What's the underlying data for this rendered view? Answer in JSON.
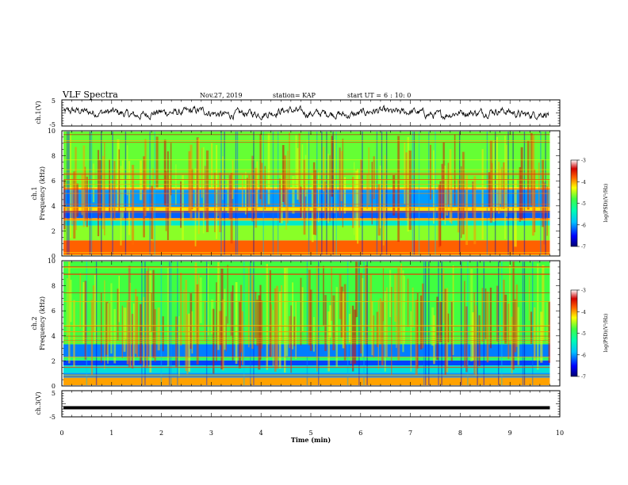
{
  "header": {
    "title": "VLF Spectra",
    "date": "Nov.27, 2019",
    "station": "station= KAP",
    "start_label": "start  UT =",
    "start_h": "6",
    "start_sep": ":",
    "start_ms": "10: 0"
  },
  "colors": {
    "waveform": "#000000",
    "axis": "#000000",
    "background": "#ffffff"
  },
  "chart_data": [
    {
      "type": "line",
      "name": "ch.1 waveform",
      "ylabel": "ch.1(V)",
      "ylim": [
        -5,
        5
      ],
      "yticks": [
        "5",
        "-5"
      ],
      "xlim": [
        0,
        10
      ],
      "description_values": "noisy waveform hovering around 0 V, amplitude ~±2 V"
    },
    {
      "type": "heatmap",
      "name": "ch.1 spectrogram",
      "ylabel": "ch.1\nFrequency (kHz)",
      "ylabel_line1": "ch.1",
      "ylabel_line2": "Frequency (kHz)",
      "ylim": [
        0,
        10
      ],
      "yticks": [
        "0",
        "2",
        "4",
        "6",
        "8",
        "10"
      ],
      "xlim": [
        0,
        10
      ],
      "colorbar": {
        "label": "log(PSD)(V²/Hz)",
        "range": [
          -7,
          -3
        ],
        "ticks": [
          "-3",
          "-4",
          "-5",
          "-6",
          "-7"
        ]
      },
      "bands_kHz": [
        {
          "from": 0.0,
          "to": 1.2,
          "level": -3.8
        },
        {
          "from": 1.2,
          "to": 2.4,
          "level": -4.6
        },
        {
          "from": 2.4,
          "to": 2.8,
          "level": -5.5
        },
        {
          "from": 2.8,
          "to": 3.0,
          "level": -4.0
        },
        {
          "from": 3.0,
          "to": 3.6,
          "level": -6.2
        },
        {
          "from": 3.6,
          "to": 3.9,
          "level": -4.2
        },
        {
          "from": 3.9,
          "to": 5.3,
          "level": -6.0
        },
        {
          "from": 5.3,
          "to": 5.5,
          "level": -4.2
        },
        {
          "from": 5.5,
          "to": 10.0,
          "level": -4.7
        }
      ]
    },
    {
      "type": "heatmap",
      "name": "ch.2 spectrogram",
      "ylabel": "ch.2\nFrequency (kHz)",
      "ylabel_line1": "ch.2",
      "ylabel_line2": "Frequency (kHz)",
      "ylim": [
        0,
        10
      ],
      "yticks": [
        "0",
        "2",
        "4",
        "6",
        "8",
        "10"
      ],
      "xlim": [
        0,
        10
      ],
      "colorbar": {
        "label": "log(PSD)(V²/Hz)",
        "range": [
          -7,
          -3
        ],
        "ticks": [
          "-3",
          "-4",
          "-5",
          "-6",
          "-7"
        ]
      },
      "bands_kHz": [
        {
          "from": 0.0,
          "to": 0.6,
          "level": -4.0
        },
        {
          "from": 0.6,
          "to": 1.0,
          "level": -6.0
        },
        {
          "from": 1.0,
          "to": 1.6,
          "level": -5.6
        },
        {
          "from": 1.6,
          "to": 2.0,
          "level": -6.3
        },
        {
          "from": 2.0,
          "to": 2.3,
          "level": -5.0
        },
        {
          "from": 2.3,
          "to": 3.3,
          "level": -6.1
        },
        {
          "from": 3.3,
          "to": 10.0,
          "level": -4.8
        }
      ]
    },
    {
      "type": "line",
      "name": "ch.3 waveform",
      "ylabel": "ch.3(V)",
      "ylim": [
        -5,
        5
      ],
      "yticks": [
        "5",
        "-5"
      ],
      "xlim": [
        0,
        10
      ],
      "constant_value": -1.5,
      "xlabel": "Time (min)",
      "xticks": [
        "0",
        "1",
        "2",
        "3",
        "4",
        "5",
        "6",
        "7",
        "8",
        "9",
        "10"
      ]
    }
  ]
}
